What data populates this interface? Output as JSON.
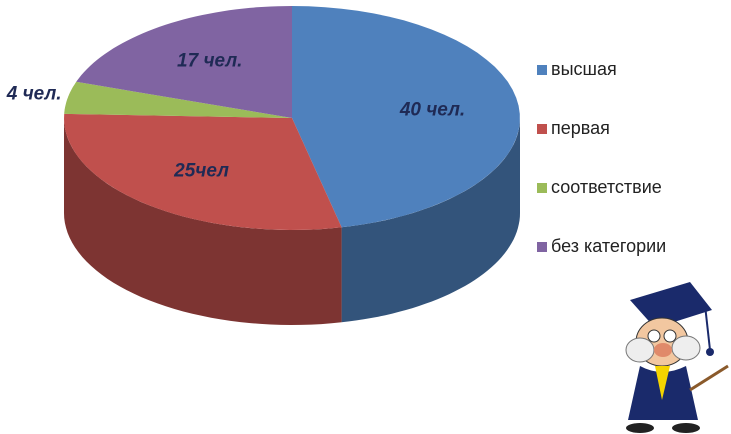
{
  "chart_data": {
    "type": "pie",
    "categories": [
      "высшая",
      "первая",
      "соответствие",
      "без категории"
    ],
    "values": [
      40,
      25,
      4,
      17
    ],
    "value_labels": [
      "40 чел.",
      "25чел",
      "4 чел.",
      "17 чел."
    ],
    "colors": [
      "#4f81bd",
      "#c0504d",
      "#9bbb59",
      "#8064a2"
    ],
    "legend": "right"
  }
}
